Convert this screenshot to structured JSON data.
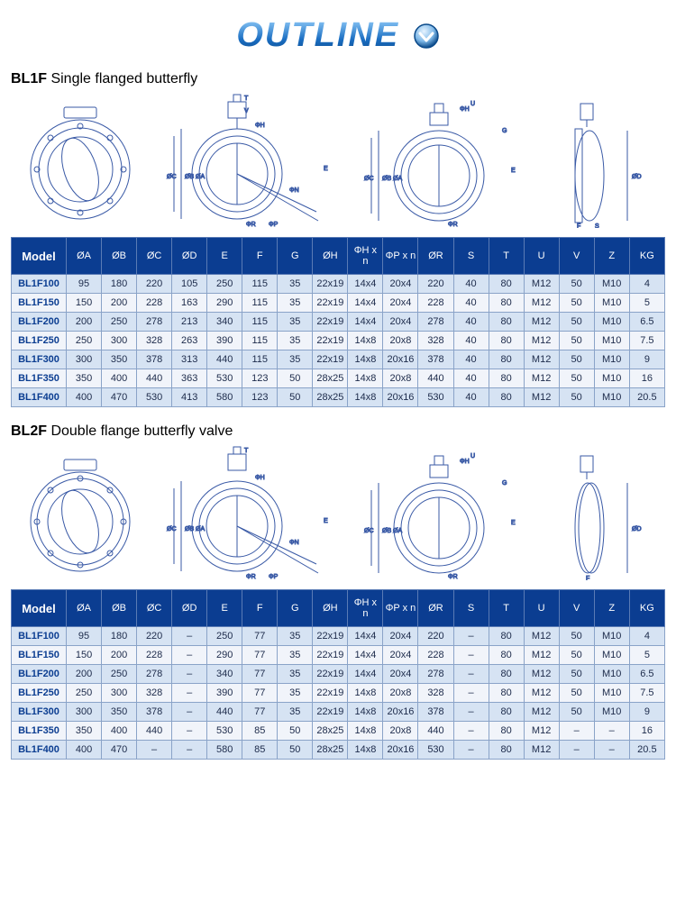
{
  "page": {
    "title": "OUTLINE",
    "title_color_stops": [
      "#9fd7ff",
      "#1b6ec2",
      "#0b4a8a"
    ],
    "icon_border": "#0b4a8a",
    "icon_fill_light": "#bde0ff",
    "icon_fill_dark": "#0b4a8a"
  },
  "diagram_stroke": "#3a5aa6",
  "section1": {
    "prefix": "BL1F",
    "label": "Single flanged butterfly",
    "table": {
      "header_bg": "#0b3d91",
      "header_text": "#ffffff",
      "row_odd_bg": "#d6e3f3",
      "row_even_bg": "#f1f4fa",
      "border_color": "#8aa3c8",
      "columns": [
        "Model",
        "ØA",
        "ØB",
        "ØC",
        "ØD",
        "E",
        "F",
        "G",
        "ØH",
        "ΦH x n",
        "ΦP x n",
        "ØR",
        "S",
        "T",
        "U",
        "V",
        "Z",
        "KG"
      ],
      "rows": [
        [
          "BL1F100",
          "95",
          "180",
          "220",
          "105",
          "250",
          "115",
          "35",
          "22x19",
          "14x4",
          "20x4",
          "220",
          "40",
          "80",
          "M12",
          "50",
          "M10",
          "4"
        ],
        [
          "BL1F150",
          "150",
          "200",
          "228",
          "163",
          "290",
          "115",
          "35",
          "22x19",
          "14x4",
          "20x4",
          "228",
          "40",
          "80",
          "M12",
          "50",
          "M10",
          "5"
        ],
        [
          "BL1F200",
          "200",
          "250",
          "278",
          "213",
          "340",
          "115",
          "35",
          "22x19",
          "14x4",
          "20x4",
          "278",
          "40",
          "80",
          "M12",
          "50",
          "M10",
          "6.5"
        ],
        [
          "BL1F250",
          "250",
          "300",
          "328",
          "263",
          "390",
          "115",
          "35",
          "22x19",
          "14x8",
          "20x8",
          "328",
          "40",
          "80",
          "M12",
          "50",
          "M10",
          "7.5"
        ],
        [
          "BL1F300",
          "300",
          "350",
          "378",
          "313",
          "440",
          "115",
          "35",
          "22x19",
          "14x8",
          "20x16",
          "378",
          "40",
          "80",
          "M12",
          "50",
          "M10",
          "9"
        ],
        [
          "BL1F350",
          "350",
          "400",
          "440",
          "363",
          "530",
          "123",
          "50",
          "28x25",
          "14x8",
          "20x8",
          "440",
          "40",
          "80",
          "M12",
          "50",
          "M10",
          "16"
        ],
        [
          "BL1F400",
          "400",
          "470",
          "530",
          "413",
          "580",
          "123",
          "50",
          "28x25",
          "14x8",
          "20x16",
          "530",
          "40",
          "80",
          "M12",
          "50",
          "M10",
          "20.5"
        ]
      ]
    }
  },
  "section2": {
    "prefix": "BL2F",
    "label": "Double flange butterfly valve",
    "table": {
      "header_bg": "#0b3d91",
      "header_text": "#ffffff",
      "row_odd_bg": "#d6e3f3",
      "row_even_bg": "#f1f4fa",
      "border_color": "#8aa3c8",
      "columns": [
        "Model",
        "ØA",
        "ØB",
        "ØC",
        "ØD",
        "E",
        "F",
        "G",
        "ØH",
        "ΦH x n",
        "ΦP x n",
        "ØR",
        "S",
        "T",
        "U",
        "V",
        "Z",
        "KG"
      ],
      "rows": [
        [
          "BL1F100",
          "95",
          "180",
          "220",
          "–",
          "250",
          "77",
          "35",
          "22x19",
          "14x4",
          "20x4",
          "220",
          "–",
          "80",
          "M12",
          "50",
          "M10",
          "4"
        ],
        [
          "BL1F150",
          "150",
          "200",
          "228",
          "–",
          "290",
          "77",
          "35",
          "22x19",
          "14x4",
          "20x4",
          "228",
          "–",
          "80",
          "M12",
          "50",
          "M10",
          "5"
        ],
        [
          "BL1F200",
          "200",
          "250",
          "278",
          "–",
          "340",
          "77",
          "35",
          "22x19",
          "14x4",
          "20x4",
          "278",
          "–",
          "80",
          "M12",
          "50",
          "M10",
          "6.5"
        ],
        [
          "BL1F250",
          "250",
          "300",
          "328",
          "–",
          "390",
          "77",
          "35",
          "22x19",
          "14x8",
          "20x8",
          "328",
          "–",
          "80",
          "M12",
          "50",
          "M10",
          "7.5"
        ],
        [
          "BL1F300",
          "300",
          "350",
          "378",
          "–",
          "440",
          "77",
          "35",
          "22x19",
          "14x8",
          "20x16",
          "378",
          "–",
          "80",
          "M12",
          "50",
          "M10",
          "9"
        ],
        [
          "BL1F350",
          "350",
          "400",
          "440",
          "–",
          "530",
          "85",
          "50",
          "28x25",
          "14x8",
          "20x8",
          "440",
          "–",
          "80",
          "M12",
          "–",
          "–",
          "16"
        ],
        [
          "BL1F400",
          "400",
          "470",
          "–",
          "–",
          "580",
          "85",
          "50",
          "28x25",
          "14x8",
          "20x16",
          "530",
          "–",
          "80",
          "M12",
          "–",
          "–",
          "20.5"
        ]
      ]
    }
  }
}
